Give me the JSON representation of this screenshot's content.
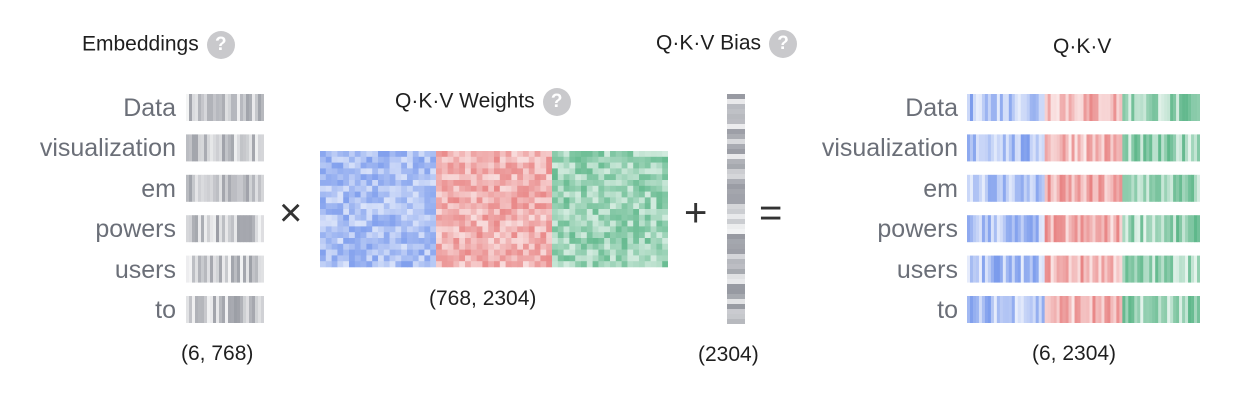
{
  "embeddings": {
    "title": "Embeddings",
    "help_icon": "question-mark-icon",
    "tokens": [
      "Data",
      "visualization",
      "em",
      "powers",
      "users",
      "to"
    ],
    "shape": "(6, 768)"
  },
  "weights": {
    "title": "Q·K·V Weights",
    "help_icon": "question-mark-icon",
    "shape": "(768, 2304)"
  },
  "bias": {
    "title": "Q·K·V Bias",
    "help_icon": "question-mark-icon",
    "shape": "(2304)"
  },
  "output": {
    "title": "Q·K·V",
    "tokens": [
      "Data",
      "visualization",
      "em",
      "powers",
      "users",
      "to"
    ],
    "shape": "(6, 2304)"
  },
  "operators": {
    "multiply": "×",
    "plus": "+",
    "equals": "="
  },
  "colors": {
    "query": "#6b8fea",
    "key": "#e57373",
    "value": "#4caf7d",
    "gray": "#8a8d96"
  }
}
